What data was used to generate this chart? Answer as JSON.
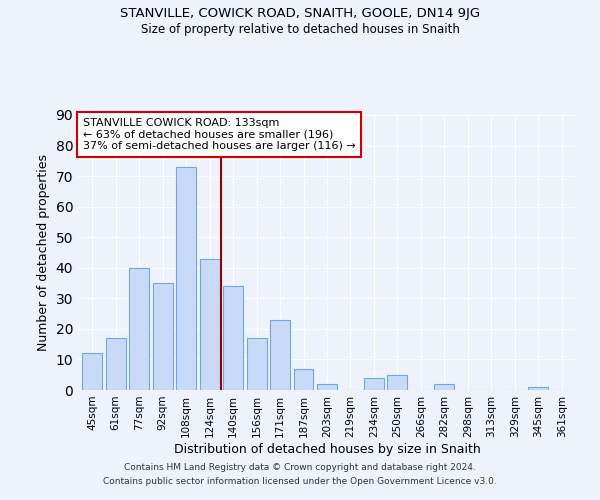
{
  "title": "STANVILLE, COWICK ROAD, SNAITH, GOOLE, DN14 9JG",
  "subtitle": "Size of property relative to detached houses in Snaith",
  "xlabel": "Distribution of detached houses by size in Snaith",
  "ylabel": "Number of detached properties",
  "footer_line1": "Contains HM Land Registry data © Crown copyright and database right 2024.",
  "footer_line2": "Contains public sector information licensed under the Open Government Licence v3.0.",
  "bar_labels": [
    "45sqm",
    "61sqm",
    "77sqm",
    "92sqm",
    "108sqm",
    "124sqm",
    "140sqm",
    "156sqm",
    "171sqm",
    "187sqm",
    "203sqm",
    "219sqm",
    "234sqm",
    "250sqm",
    "266sqm",
    "282sqm",
    "298sqm",
    "313sqm",
    "329sqm",
    "345sqm",
    "361sqm"
  ],
  "bar_values": [
    12,
    17,
    40,
    35,
    73,
    43,
    34,
    17,
    23,
    7,
    2,
    0,
    4,
    5,
    0,
    2,
    0,
    0,
    0,
    1,
    0
  ],
  "bar_color": "#c9daf8",
  "bar_edge_color": "#6fa8dc",
  "vline_x": 5.5,
  "vline_color": "#990000",
  "annotation_title": "STANVILLE COWICK ROAD: 133sqm",
  "annotation_line1": "← 63% of detached houses are smaller (196)",
  "annotation_line2": "37% of semi-detached houses are larger (116) →",
  "annotation_box_edge": "#cc0000",
  "ylim": [
    0,
    90
  ],
  "yticks": [
    0,
    10,
    20,
    30,
    40,
    50,
    60,
    70,
    80,
    90
  ],
  "background_color": "#eef2fb",
  "plot_bg_color": "#eef2fb",
  "grid_color": "#ffffff",
  "title_fontsize": 9.5,
  "subtitle_fontsize": 8.5
}
